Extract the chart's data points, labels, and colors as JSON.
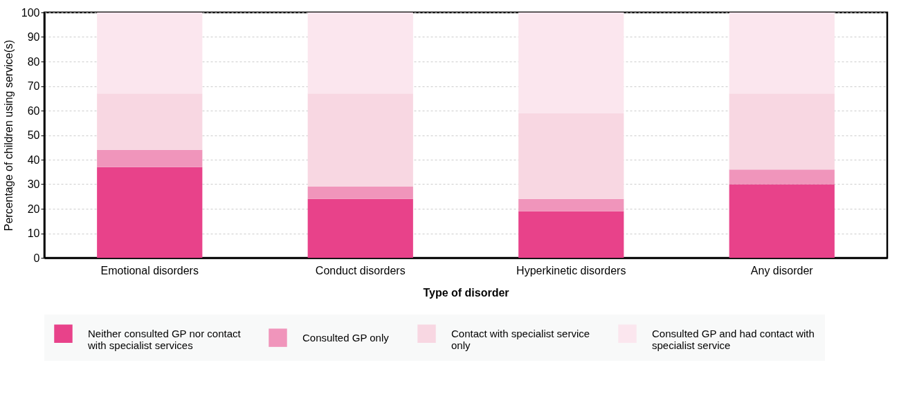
{
  "chart_data": {
    "type": "bar",
    "stacked": true,
    "xlabel": "Type of disorder",
    "ylabel": "Percentage of children using service(s)",
    "categories": [
      "Emotional disorders",
      "Conduct disorders",
      "Hyperkinetic disorders",
      "Any disorder"
    ],
    "series": [
      {
        "name": "Neither consulted GP nor contact with specialist services",
        "color": "#e8428a",
        "values": [
          37,
          24,
          19,
          30
        ]
      },
      {
        "name": "Consulted GP only",
        "color": "#f095bb",
        "values": [
          7,
          5,
          5,
          6
        ]
      },
      {
        "name": "Contact with specialist service only",
        "color": "#f8d7e2",
        "values": [
          23,
          38,
          35,
          31
        ]
      },
      {
        "name": "Consulted GP and had contact with specialist service",
        "color": "#fbe6ee",
        "values": [
          33,
          33,
          41,
          33
        ]
      }
    ],
    "ylim": [
      0,
      100
    ],
    "yticks": [
      0,
      10,
      20,
      30,
      40,
      50,
      60,
      70,
      80,
      90,
      100
    ],
    "grid": "y",
    "legend": "bottom"
  }
}
